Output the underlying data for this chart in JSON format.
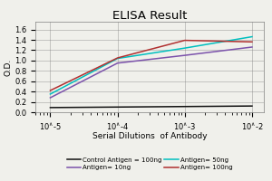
{
  "title": "ELISA Result",
  "ylabel": "O.D.",
  "xlabel": "Serial Dilutions  of Antibody",
  "x_values": [
    0.01,
    0.001,
    0.0001,
    1e-05
  ],
  "series": [
    {
      "label": "Control Antigen = 100ng",
      "color": "#111111",
      "linewidth": 1.1,
      "y_values": [
        0.12,
        0.11,
        0.1,
        0.09
      ]
    },
    {
      "label": "Antigen= 10ng",
      "color": "#7B52AB",
      "linewidth": 1.1,
      "y_values": [
        1.26,
        1.1,
        0.95,
        0.28
      ]
    },
    {
      "label": "Antigen= 50ng",
      "color": "#00BFBF",
      "linewidth": 1.1,
      "y_values": [
        1.46,
        1.24,
        1.04,
        0.35
      ]
    },
    {
      "label": "Antigen= 100ng",
      "color": "#B03030",
      "linewidth": 1.1,
      "y_values": [
        1.36,
        1.39,
        1.05,
        0.42
      ]
    }
  ],
  "ylim": [
    0,
    1.75
  ],
  "yticks": [
    0,
    0.2,
    0.4,
    0.6,
    0.8,
    1.0,
    1.2,
    1.4,
    1.6
  ],
  "xtick_labels": [
    "10^-2",
    "10^-3",
    "10^-4",
    "10^-5"
  ],
  "background_color": "#f0f0eb",
  "legend_fontsize": 5.0,
  "title_fontsize": 9.5,
  "axis_label_fontsize": 6.5,
  "tick_fontsize": 6
}
